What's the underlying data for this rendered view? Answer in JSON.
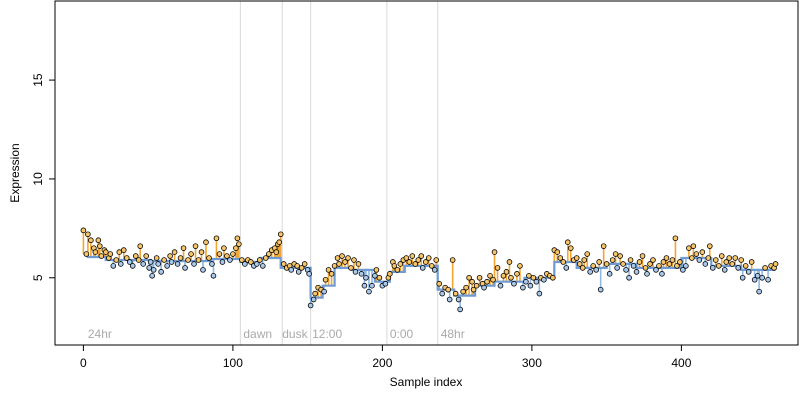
{
  "chart_data": {
    "type": "scatter",
    "title": "",
    "xlabel": "Sample index",
    "ylabel": "Expression",
    "xlim": [
      -19,
      478
    ],
    "ylim": [
      1.6,
      19.0
    ],
    "xticks": [
      0,
      100,
      200,
      300,
      400
    ],
    "yticks": [
      5,
      10,
      15
    ],
    "grid": false,
    "colors": {
      "fit_line": "#6e9bd3",
      "above_stem": "#f2a532",
      "below_stem": "#8fb8e3",
      "above_point": "#f7c56a",
      "below_point": "#a8c8ec",
      "point_edge": "#000000",
      "separator": "#d9d9d9",
      "annotation": "#aaaaaa"
    },
    "separators": [
      105,
      133,
      152,
      203,
      237
    ],
    "annotations": [
      {
        "x": 3,
        "text": "24hr"
      },
      {
        "x": 107,
        "text": "dawn"
      },
      {
        "x": 133,
        "text": "dusk"
      },
      {
        "x": 153,
        "text": "12:00"
      },
      {
        "x": 205,
        "text": "0:00"
      },
      {
        "x": 239,
        "text": "48hr"
      }
    ],
    "fit": [
      {
        "x0": 0,
        "x1": 3,
        "y": 6.2
      },
      {
        "x0": 3,
        "x1": 15,
        "y": 6.05
      },
      {
        "x0": 15,
        "x1": 45,
        "y": 5.9
      },
      {
        "x0": 45,
        "x1": 85,
        "y": 5.85
      },
      {
        "x0": 85,
        "x1": 105,
        "y": 5.95
      },
      {
        "x0": 105,
        "x1": 118,
        "y": 5.8
      },
      {
        "x0": 118,
        "x1": 132,
        "y": 6.0
      },
      {
        "x0": 132,
        "x1": 152,
        "y": 5.5
      },
      {
        "x0": 152,
        "x1": 160,
        "y": 4.0
      },
      {
        "x0": 160,
        "x1": 168,
        "y": 4.6
      },
      {
        "x0": 168,
        "x1": 180,
        "y": 5.5
      },
      {
        "x0": 180,
        "x1": 195,
        "y": 5.4
      },
      {
        "x0": 195,
        "x1": 205,
        "y": 4.8
      },
      {
        "x0": 205,
        "x1": 215,
        "y": 5.3
      },
      {
        "x0": 215,
        "x1": 237,
        "y": 5.6
      },
      {
        "x0": 237,
        "x1": 248,
        "y": 4.4
      },
      {
        "x0": 248,
        "x1": 262,
        "y": 4.1
      },
      {
        "x0": 262,
        "x1": 275,
        "y": 4.6
      },
      {
        "x0": 275,
        "x1": 295,
        "y": 4.8
      },
      {
        "x0": 295,
        "x1": 315,
        "y": 5.0
      },
      {
        "x0": 315,
        "x1": 330,
        "y": 5.8
      },
      {
        "x0": 330,
        "x1": 350,
        "y": 5.5
      },
      {
        "x0": 350,
        "x1": 370,
        "y": 5.7
      },
      {
        "x0": 370,
        "x1": 400,
        "y": 5.5
      },
      {
        "x0": 400,
        "x1": 420,
        "y": 6.0
      },
      {
        "x0": 420,
        "x1": 440,
        "y": 5.6
      },
      {
        "x0": 440,
        "x1": 463,
        "y": 5.4
      }
    ],
    "points": [
      {
        "x": 0,
        "y": 7.4
      },
      {
        "x": 2,
        "y": 6.2
      },
      {
        "x": 3,
        "y": 7.2
      },
      {
        "x": 5,
        "y": 6.9
      },
      {
        "x": 7,
        "y": 6.5
      },
      {
        "x": 8,
        "y": 6.3
      },
      {
        "x": 10,
        "y": 6.9
      },
      {
        "x": 11,
        "y": 6.6
      },
      {
        "x": 12,
        "y": 6.1
      },
      {
        "x": 14,
        "y": 6.4
      },
      {
        "x": 15,
        "y": 6.3
      },
      {
        "x": 17,
        "y": 6.0
      },
      {
        "x": 18,
        "y": 6.2
      },
      {
        "x": 20,
        "y": 5.6
      },
      {
        "x": 22,
        "y": 5.9
      },
      {
        "x": 24,
        "y": 6.3
      },
      {
        "x": 25,
        "y": 5.7
      },
      {
        "x": 27,
        "y": 6.4
      },
      {
        "x": 29,
        "y": 6.0
      },
      {
        "x": 31,
        "y": 5.8
      },
      {
        "x": 33,
        "y": 5.6
      },
      {
        "x": 35,
        "y": 6.1
      },
      {
        "x": 37,
        "y": 5.9
      },
      {
        "x": 38,
        "y": 6.6
      },
      {
        "x": 40,
        "y": 5.7
      },
      {
        "x": 42,
        "y": 6.1
      },
      {
        "x": 44,
        "y": 5.5
      },
      {
        "x": 45,
        "y": 5.8
      },
      {
        "x": 46,
        "y": 5.1
      },
      {
        "x": 47,
        "y": 5.4
      },
      {
        "x": 49,
        "y": 6.0
      },
      {
        "x": 50,
        "y": 5.7
      },
      {
        "x": 52,
        "y": 5.3
      },
      {
        "x": 54,
        "y": 5.9
      },
      {
        "x": 56,
        "y": 5.6
      },
      {
        "x": 58,
        "y": 6.1
      },
      {
        "x": 59,
        "y": 5.8
      },
      {
        "x": 61,
        "y": 6.3
      },
      {
        "x": 63,
        "y": 5.7
      },
      {
        "x": 65,
        "y": 6.0
      },
      {
        "x": 67,
        "y": 6.5
      },
      {
        "x": 68,
        "y": 5.5
      },
      {
        "x": 70,
        "y": 5.9
      },
      {
        "x": 72,
        "y": 6.2
      },
      {
        "x": 74,
        "y": 5.7
      },
      {
        "x": 75,
        "y": 6.6
      },
      {
        "x": 77,
        "y": 5.9
      },
      {
        "x": 79,
        "y": 6.3
      },
      {
        "x": 80,
        "y": 5.4
      },
      {
        "x": 82,
        "y": 6.8
      },
      {
        "x": 84,
        "y": 6.0
      },
      {
        "x": 86,
        "y": 5.7
      },
      {
        "x": 87,
        "y": 5.1
      },
      {
        "x": 89,
        "y": 7.0
      },
      {
        "x": 91,
        "y": 6.2
      },
      {
        "x": 93,
        "y": 5.8
      },
      {
        "x": 94,
        "y": 6.5
      },
      {
        "x": 96,
        "y": 6.1
      },
      {
        "x": 98,
        "y": 5.9
      },
      {
        "x": 100,
        "y": 6.2
      },
      {
        "x": 102,
        "y": 6.5
      },
      {
        "x": 103,
        "y": 7.0
      },
      {
        "x": 104,
        "y": 6.7
      },
      {
        "x": 106,
        "y": 5.9
      },
      {
        "x": 108,
        "y": 5.7
      },
      {
        "x": 110,
        "y": 5.9
      },
      {
        "x": 112,
        "y": 5.8
      },
      {
        "x": 114,
        "y": 5.6
      },
      {
        "x": 116,
        "y": 5.7
      },
      {
        "x": 118,
        "y": 5.9
      },
      {
        "x": 120,
        "y": 5.6
      },
      {
        "x": 122,
        "y": 6.0
      },
      {
        "x": 124,
        "y": 6.2
      },
      {
        "x": 126,
        "y": 6.4
      },
      {
        "x": 128,
        "y": 6.5
      },
      {
        "x": 129,
        "y": 6.3
      },
      {
        "x": 130,
        "y": 6.7
      },
      {
        "x": 131,
        "y": 6.8
      },
      {
        "x": 132,
        "y": 7.2
      },
      {
        "x": 134,
        "y": 5.7
      },
      {
        "x": 136,
        "y": 5.5
      },
      {
        "x": 138,
        "y": 5.6
      },
      {
        "x": 139,
        "y": 5.4
      },
      {
        "x": 141,
        "y": 5.7
      },
      {
        "x": 143,
        "y": 5.6
      },
      {
        "x": 144,
        "y": 5.3
      },
      {
        "x": 146,
        "y": 5.5
      },
      {
        "x": 148,
        "y": 5.7
      },
      {
        "x": 150,
        "y": 5.4
      },
      {
        "x": 151,
        "y": 5.2
      },
      {
        "x": 152,
        "y": 3.6
      },
      {
        "x": 154,
        "y": 3.9
      },
      {
        "x": 155,
        "y": 4.2
      },
      {
        "x": 157,
        "y": 4.5
      },
      {
        "x": 159,
        "y": 4.4
      },
      {
        "x": 161,
        "y": 4.3
      },
      {
        "x": 162,
        "y": 4.9
      },
      {
        "x": 164,
        "y": 5.4
      },
      {
        "x": 166,
        "y": 5.2
      },
      {
        "x": 168,
        "y": 5.6
      },
      {
        "x": 170,
        "y": 6.0
      },
      {
        "x": 171,
        "y": 5.7
      },
      {
        "x": 173,
        "y": 6.1
      },
      {
        "x": 175,
        "y": 5.8
      },
      {
        "x": 177,
        "y": 6.0
      },
      {
        "x": 179,
        "y": 5.5
      },
      {
        "x": 181,
        "y": 5.9
      },
      {
        "x": 182,
        "y": 5.3
      },
      {
        "x": 184,
        "y": 5.7
      },
      {
        "x": 186,
        "y": 5.2
      },
      {
        "x": 188,
        "y": 4.6
      },
      {
        "x": 189,
        "y": 5.0
      },
      {
        "x": 191,
        "y": 4.3
      },
      {
        "x": 193,
        "y": 4.6
      },
      {
        "x": 195,
        "y": 5.1
      },
      {
        "x": 196,
        "y": 5.4
      },
      {
        "x": 198,
        "y": 5.0
      },
      {
        "x": 200,
        "y": 4.6
      },
      {
        "x": 202,
        "y": 4.7
      },
      {
        "x": 204,
        "y": 5.0
      },
      {
        "x": 205,
        "y": 5.2
      },
      {
        "x": 207,
        "y": 5.8
      },
      {
        "x": 208,
        "y": 5.6
      },
      {
        "x": 210,
        "y": 5.4
      },
      {
        "x": 212,
        "y": 5.7
      },
      {
        "x": 214,
        "y": 5.9
      },
      {
        "x": 216,
        "y": 6.0
      },
      {
        "x": 218,
        "y": 5.8
      },
      {
        "x": 220,
        "y": 6.1
      },
      {
        "x": 222,
        "y": 5.7
      },
      {
        "x": 224,
        "y": 5.9
      },
      {
        "x": 226,
        "y": 6.1
      },
      {
        "x": 227,
        "y": 5.5
      },
      {
        "x": 229,
        "y": 5.8
      },
      {
        "x": 231,
        "y": 6.0
      },
      {
        "x": 233,
        "y": 5.6
      },
      {
        "x": 235,
        "y": 5.4
      },
      {
        "x": 236,
        "y": 5.9
      },
      {
        "x": 238,
        "y": 4.7
      },
      {
        "x": 240,
        "y": 4.2
      },
      {
        "x": 242,
        "y": 4.5
      },
      {
        "x": 244,
        "y": 4.4
      },
      {
        "x": 245,
        "y": 3.9
      },
      {
        "x": 247,
        "y": 5.9
      },
      {
        "x": 249,
        "y": 4.2
      },
      {
        "x": 251,
        "y": 3.9
      },
      {
        "x": 252,
        "y": 3.4
      },
      {
        "x": 254,
        "y": 4.3
      },
      {
        "x": 256,
        "y": 4.5
      },
      {
        "x": 258,
        "y": 5.0
      },
      {
        "x": 260,
        "y": 4.8
      },
      {
        "x": 261,
        "y": 4.4
      },
      {
        "x": 263,
        "y": 4.6
      },
      {
        "x": 265,
        "y": 5.0
      },
      {
        "x": 267,
        "y": 4.7
      },
      {
        "x": 268,
        "y": 4.5
      },
      {
        "x": 270,
        "y": 4.8
      },
      {
        "x": 272,
        "y": 5.1
      },
      {
        "x": 274,
        "y": 4.9
      },
      {
        "x": 275,
        "y": 6.3
      },
      {
        "x": 277,
        "y": 5.5
      },
      {
        "x": 279,
        "y": 4.6
      },
      {
        "x": 281,
        "y": 5.1
      },
      {
        "x": 283,
        "y": 5.3
      },
      {
        "x": 285,
        "y": 5.8
      },
      {
        "x": 286,
        "y": 5.0
      },
      {
        "x": 288,
        "y": 4.7
      },
      {
        "x": 290,
        "y": 5.2
      },
      {
        "x": 292,
        "y": 5.6
      },
      {
        "x": 294,
        "y": 4.5
      },
      {
        "x": 296,
        "y": 4.8
      },
      {
        "x": 298,
        "y": 5.1
      },
      {
        "x": 299,
        "y": 4.6
      },
      {
        "x": 301,
        "y": 5.0
      },
      {
        "x": 303,
        "y": 4.8
      },
      {
        "x": 305,
        "y": 4.2
      },
      {
        "x": 306,
        "y": 5.0
      },
      {
        "x": 308,
        "y": 4.9
      },
      {
        "x": 310,
        "y": 5.2
      },
      {
        "x": 312,
        "y": 5.1
      },
      {
        "x": 314,
        "y": 5.0
      },
      {
        "x": 315,
        "y": 6.4
      },
      {
        "x": 317,
        "y": 6.3
      },
      {
        "x": 319,
        "y": 6.0
      },
      {
        "x": 321,
        "y": 5.8
      },
      {
        "x": 323,
        "y": 5.5
      },
      {
        "x": 324,
        "y": 6.8
      },
      {
        "x": 326,
        "y": 6.5
      },
      {
        "x": 328,
        "y": 5.9
      },
      {
        "x": 330,
        "y": 6.0
      },
      {
        "x": 332,
        "y": 5.7
      },
      {
        "x": 334,
        "y": 5.5
      },
      {
        "x": 335,
        "y": 5.9
      },
      {
        "x": 337,
        "y": 6.2
      },
      {
        "x": 339,
        "y": 5.3
      },
      {
        "x": 341,
        "y": 5.6
      },
      {
        "x": 343,
        "y": 5.4
      },
      {
        "x": 345,
        "y": 5.8
      },
      {
        "x": 346,
        "y": 4.4
      },
      {
        "x": 348,
        "y": 6.6
      },
      {
        "x": 350,
        "y": 5.7
      },
      {
        "x": 352,
        "y": 5.2
      },
      {
        "x": 354,
        "y": 5.9
      },
      {
        "x": 356,
        "y": 6.2
      },
      {
        "x": 357,
        "y": 5.5
      },
      {
        "x": 359,
        "y": 6.1
      },
      {
        "x": 361,
        "y": 5.7
      },
      {
        "x": 363,
        "y": 5.4
      },
      {
        "x": 365,
        "y": 5.0
      },
      {
        "x": 366,
        "y": 5.9
      },
      {
        "x": 368,
        "y": 5.6
      },
      {
        "x": 370,
        "y": 5.3
      },
      {
        "x": 372,
        "y": 5.8
      },
      {
        "x": 374,
        "y": 6.1
      },
      {
        "x": 376,
        "y": 5.5
      },
      {
        "x": 377,
        "y": 5.2
      },
      {
        "x": 379,
        "y": 5.7
      },
      {
        "x": 381,
        "y": 5.9
      },
      {
        "x": 383,
        "y": 5.4
      },
      {
        "x": 385,
        "y": 5.6
      },
      {
        "x": 387,
        "y": 5.2
      },
      {
        "x": 388,
        "y": 5.8
      },
      {
        "x": 390,
        "y": 6.0
      },
      {
        "x": 392,
        "y": 5.7
      },
      {
        "x": 394,
        "y": 5.9
      },
      {
        "x": 396,
        "y": 7.0
      },
      {
        "x": 397,
        "y": 5.6
      },
      {
        "x": 399,
        "y": 5.8
      },
      {
        "x": 401,
        "y": 5.4
      },
      {
        "x": 403,
        "y": 5.6
      },
      {
        "x": 405,
        "y": 6.5
      },
      {
        "x": 407,
        "y": 6.0
      },
      {
        "x": 408,
        "y": 6.6
      },
      {
        "x": 410,
        "y": 6.2
      },
      {
        "x": 412,
        "y": 5.9
      },
      {
        "x": 414,
        "y": 6.3
      },
      {
        "x": 416,
        "y": 5.7
      },
      {
        "x": 418,
        "y": 6.0
      },
      {
        "x": 419,
        "y": 6.6
      },
      {
        "x": 421,
        "y": 5.5
      },
      {
        "x": 423,
        "y": 5.9
      },
      {
        "x": 425,
        "y": 5.6
      },
      {
        "x": 427,
        "y": 6.1
      },
      {
        "x": 429,
        "y": 5.4
      },
      {
        "x": 430,
        "y": 5.8
      },
      {
        "x": 432,
        "y": 6.0
      },
      {
        "x": 434,
        "y": 5.7
      },
      {
        "x": 436,
        "y": 6.0
      },
      {
        "x": 438,
        "y": 5.5
      },
      {
        "x": 440,
        "y": 5.9
      },
      {
        "x": 441,
        "y": 5.0
      },
      {
        "x": 443,
        "y": 5.6
      },
      {
        "x": 445,
        "y": 5.3
      },
      {
        "x": 447,
        "y": 5.8
      },
      {
        "x": 449,
        "y": 4.9
      },
      {
        "x": 451,
        "y": 5.1
      },
      {
        "x": 452,
        "y": 4.3
      },
      {
        "x": 454,
        "y": 5.0
      },
      {
        "x": 456,
        "y": 5.5
      },
      {
        "x": 458,
        "y": 4.9
      },
      {
        "x": 460,
        "y": 5.6
      },
      {
        "x": 462,
        "y": 5.5
      },
      {
        "x": 463,
        "y": 5.7
      }
    ]
  }
}
